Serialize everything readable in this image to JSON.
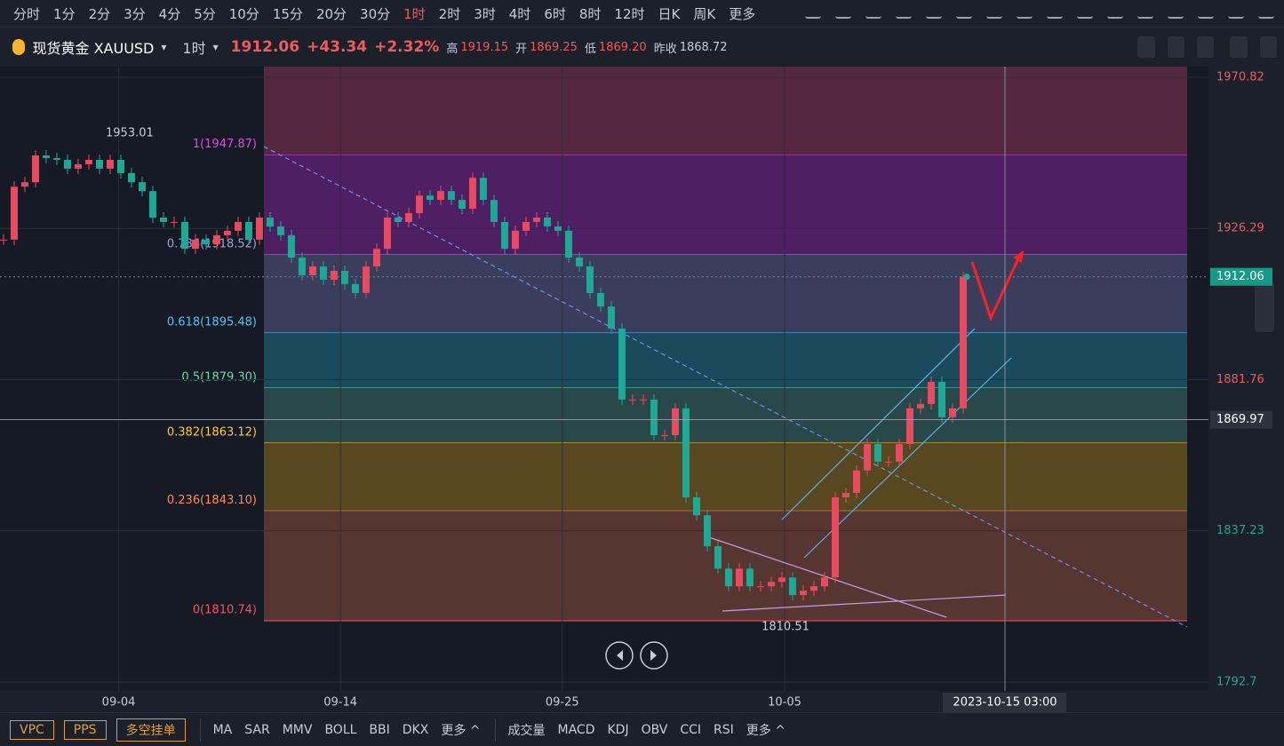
{
  "toolbar": {
    "periods": [
      "分时",
      "1分",
      "2分",
      "3分",
      "4分",
      "5分",
      "10分",
      "15分",
      "20分",
      "30分",
      "1时",
      "2时",
      "3时",
      "4时",
      "6时",
      "8时",
      "12时",
      "日K",
      "周K"
    ],
    "more": "更多"
  },
  "header": {
    "instrument": "现货黄金 XAUUSD",
    "period": "1时",
    "price": "1912.06",
    "change": "+43.34",
    "change_pct": "+2.32%",
    "high_label": "高",
    "high": "1919.15",
    "open_label": "开",
    "open": "1869.25",
    "low_label": "低",
    "low": "1869.20",
    "prev_label": "昨收",
    "prev": "1868.72"
  },
  "chart_data": {
    "type": "candlestick",
    "closes": [
      1923.0,
      1938.6,
      1939.9,
      1947.8,
      1947.0,
      1946.5,
      1943.9,
      1945.2,
      1946.5,
      1943.9,
      1946.5,
      1942.6,
      1939.9,
      1937.3,
      1929.5,
      1928.2,
      1928.2,
      1920.3,
      1923.0,
      1921.6,
      1924.3,
      1925.6,
      1928.2,
      1923.0,
      1929.5,
      1926.9,
      1924.3,
      1917.7,
      1912.5,
      1915.1,
      1911.2,
      1913.8,
      1909.9,
      1907.3,
      1915.1,
      1920.3,
      1929.5,
      1928.2,
      1930.8,
      1936.0,
      1934.7,
      1937.3,
      1934.7,
      1932.1,
      1941.2,
      1934.7,
      1928.2,
      1920.3,
      1925.6,
      1928.2,
      1929.5,
      1926.9,
      1925.6,
      1917.7,
      1915.1,
      1907.3,
      1903.3,
      1896.8,
      1875.9,
      1875.9,
      1875.9,
      1865.4,
      1865.4,
      1873.3,
      1847.1,
      1841.8,
      1832.7,
      1826.1,
      1820.9,
      1826.1,
      1820.9,
      1820.9,
      1822.2,
      1823.5,
      1818.3,
      1819.6,
      1820.9,
      1823.5,
      1847.1,
      1848.4,
      1855.0,
      1862.8,
      1857.6,
      1857.6,
      1862.8,
      1873.3,
      1874.6,
      1881.1,
      1870.7,
      1873.3,
      1912.06
    ],
    "up_color": "#e84a5f",
    "down_color": "#1ea896",
    "xlim": [
      -0.33,
      113
    ],
    "xticks": [
      {
        "value": 10.8,
        "label": "09-04"
      },
      {
        "value": 31.6,
        "label": "09-14"
      },
      {
        "value": 52.4,
        "label": "09-25"
      },
      {
        "value": 73.25,
        "label": "10-05"
      }
    ],
    "ylim": [
      1790.08,
      1973.96
    ],
    "yticks": [
      1970.82,
      1926.29,
      1881.76,
      1837.23,
      1792.7
    ],
    "fib_levels": [
      {
        "label": "1(1947.87)",
        "value": 1947.87,
        "color": "#d94fe0",
        "fill": "#56283f"
      },
      {
        "label": "0.786(1918.52)",
        "value": 1918.52,
        "color": "#a99be0",
        "fill": "#4e1f62"
      },
      {
        "label": "0.618(1895.48)",
        "value": 1895.48,
        "color": "#4fc3f7",
        "fill": "#3b3d5c"
      },
      {
        "label": "0.5(1879.30)",
        "value": 1879.3,
        "color": "#6ddba6",
        "fill": "#1b4a5c"
      },
      {
        "label": "0.382(1863.12)",
        "value": 1863.12,
        "color": "#ffca28",
        "fill": "#29484a"
      },
      {
        "label": "0.236(1843.10)",
        "value": 1843.1,
        "color": "#ff8a50",
        "fill": "#574820"
      },
      {
        "label": "0(1810.74)",
        "value": 1810.74,
        "color": "#ff4d5e",
        "fill": "#573530"
      }
    ],
    "high_mark": 1953.01,
    "low_mark": 1810.51,
    "last_price": 1912.06,
    "prev_close": 1868.72,
    "crosshair": {
      "price": 1869.97,
      "time": "2023-10-15 03:00"
    }
  },
  "bottom_bar": {
    "buttons": [
      "VPC",
      "PPS",
      "多空挂单"
    ],
    "main_indicators": [
      "MA",
      "SAR",
      "MMV",
      "BOLL",
      "BBI",
      "DKX",
      "更多 ^"
    ],
    "sub_indicators": [
      "成交量",
      "MACD",
      "KDJ",
      "OBV",
      "CCI",
      "RSI",
      "更多 ^"
    ]
  }
}
